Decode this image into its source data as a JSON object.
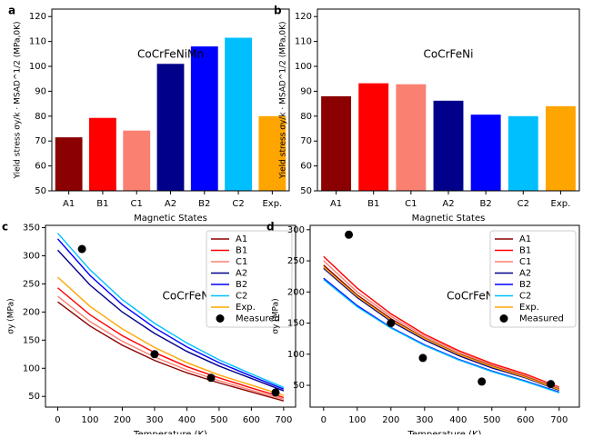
{
  "chart_data": [
    {
      "type": "bar",
      "panel_label": "a",
      "title": "CoCrFeNiMn",
      "xlabel": "Magnetic States",
      "ylabel": "Yield stress σy/k · MSAD^1/2 (MPa,0K)",
      "categories": [
        "A1",
        "B1",
        "C1",
        "A2",
        "B2",
        "C2",
        "Exp."
      ],
      "values": [
        71.5,
        79.3,
        74.2,
        101,
        108,
        111.5,
        80
      ],
      "colors": [
        "#8b0000",
        "#ff0000",
        "#fa8072",
        "#00008b",
        "#0000ff",
        "#00bfff",
        "#ffa500"
      ],
      "ylim": [
        50,
        123
      ],
      "yticks": [
        50,
        60,
        70,
        80,
        90,
        100,
        110,
        120
      ]
    },
    {
      "type": "bar",
      "panel_label": "b",
      "title": "CoCrFeNi",
      "xlabel": "Magnetic States",
      "ylabel": "Yield stress σy/k · MSAD^1/2 (MPa,0K)",
      "categories": [
        "A1",
        "B1",
        "C1",
        "A2",
        "B2",
        "C2",
        "Exp."
      ],
      "values": [
        88,
        93.2,
        92.8,
        86.2,
        80.6,
        80,
        84
      ],
      "colors": [
        "#8b0000",
        "#ff0000",
        "#fa8072",
        "#00008b",
        "#0000ff",
        "#00bfff",
        "#ffa500"
      ],
      "ylim": [
        50,
        123
      ],
      "yticks": [
        50,
        60,
        70,
        80,
        90,
        100,
        110,
        120
      ]
    },
    {
      "type": "line",
      "panel_label": "c",
      "title": "CoCrFeNiMn",
      "xlabel": "Temperature (K)",
      "ylabel": "σy (MPa)",
      "x": [
        0,
        100,
        200,
        300,
        400,
        500,
        600,
        700
      ],
      "series": [
        {
          "name": "A1",
          "color": "#8b0000",
          "values": [
            218,
            175,
            141,
            114,
            92,
            74,
            58,
            42
          ]
        },
        {
          "name": "B1",
          "color": "#ff0000",
          "values": [
            243,
            195,
            158,
            128,
            103,
            83,
            65,
            48
          ]
        },
        {
          "name": "C1",
          "color": "#fa8072",
          "values": [
            228,
            183,
            148,
            120,
            97,
            78,
            61,
            45
          ]
        },
        {
          "name": "A2",
          "color": "#00008b",
          "values": [
            310,
            248,
            200,
            162,
            130,
            104,
            82,
            60
          ]
        },
        {
          "name": "B2",
          "color": "#0000ff",
          "values": [
            330,
            265,
            213,
            172,
            138,
            110,
            86,
            63
          ]
        },
        {
          "name": "C2",
          "color": "#00bfff",
          "values": [
            340,
            275,
            222,
            180,
            145,
            115,
            90,
            66
          ]
        },
        {
          "name": "Exp.",
          "color": "#ffa500",
          "values": [
            262,
            210,
            170,
            137,
            110,
            88,
            70,
            52
          ]
        },
        {
          "name": "Measured",
          "color": "#000000",
          "x": [
            75,
            300,
            475,
            675
          ],
          "values": [
            312,
            125,
            83,
            57
          ]
        }
      ],
      "xlim": [
        -38,
        737
      ],
      "xticks": [
        0,
        100,
        200,
        300,
        400,
        500,
        600,
        700
      ],
      "ylim": [
        31,
        354
      ],
      "yticks": [
        50,
        100,
        150,
        200,
        250,
        300,
        350
      ],
      "legend": "upper right"
    },
    {
      "type": "line",
      "panel_label": "d",
      "title": "CoCrFeNi",
      "xlabel": "Temperature (K)",
      "ylabel": "σy (MPa)",
      "x": [
        0,
        100,
        200,
        300,
        400,
        500,
        600,
        700
      ],
      "series": [
        {
          "name": "A1",
          "color": "#8b0000",
          "values": [
            243,
            195,
            157,
            126,
            101,
            81,
            64,
            44
          ]
        },
        {
          "name": "B1",
          "color": "#ff0000",
          "values": [
            257,
            206,
            165,
            132,
            106,
            85,
            68,
            47
          ]
        },
        {
          "name": "C1",
          "color": "#fa8072",
          "values": [
            250,
            200,
            161,
            129,
            104,
            83,
            66,
            46
          ]
        },
        {
          "name": "A2",
          "color": "#00008b",
          "values": [
            238,
            191,
            153,
            123,
            98,
            78,
            62,
            42
          ]
        },
        {
          "name": "B2",
          "color": "#0000ff",
          "values": [
            222,
            178,
            143,
            115,
            92,
            73,
            57,
            39
          ]
        },
        {
          "name": "C2",
          "color": "#00bfff",
          "values": [
            220,
            176,
            142,
            114,
            91,
            72,
            56,
            38
          ]
        },
        {
          "name": "Exp.",
          "color": "#ffa500",
          "values": [
            240,
            193,
            155,
            125,
            100,
            80,
            63,
            43
          ]
        },
        {
          "name": "Measured",
          "color": "#000000",
          "x": [
            75,
            200,
            295,
            470,
            675
          ],
          "values": [
            292,
            150,
            94,
            56,
            52
          ]
        }
      ],
      "xlim": [
        -40,
        760
      ],
      "xticks": [
        0,
        100,
        200,
        300,
        400,
        500,
        600,
        700
      ],
      "ylim": [
        15,
        307
      ],
      "yticks": [
        50,
        100,
        150,
        200,
        250,
        300
      ],
      "legend": "upper right"
    }
  ]
}
